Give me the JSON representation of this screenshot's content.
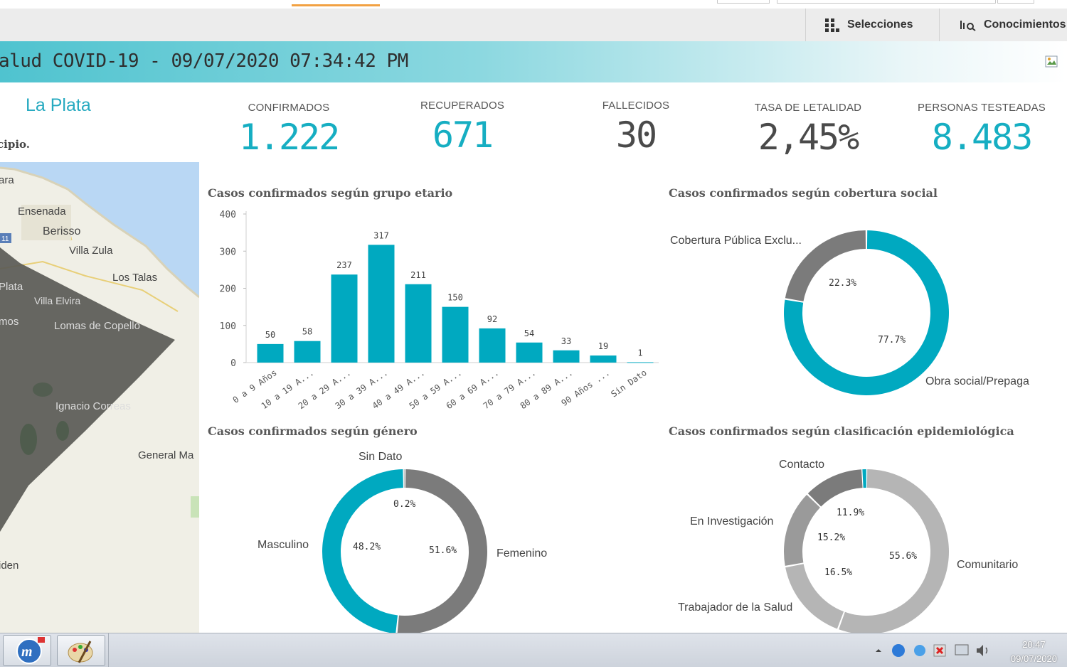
{
  "toolbar": {
    "selections_label": "Selecciones",
    "insights_label": "Conocimientos"
  },
  "banner": {
    "title": "alud COVID-19 - 09/07/2020 07:34:42 PM"
  },
  "left_panel": {
    "municipality": "La Plata",
    "subtitle": "cipio.",
    "map_labels": [
      "ara",
      "Ensenada",
      "Berisso",
      "Villa Zula",
      "Los Talas",
      "Plata",
      "Villa Elvira",
      "mos",
      "Lomas de Copello",
      "Ignacio Correas",
      "General Ma",
      "iden"
    ],
    "map_badge": "11"
  },
  "kpis": [
    {
      "label": "CONFIRMADOS",
      "value": "1.222",
      "color": "#16aec2"
    },
    {
      "label": "RECUPERADOS",
      "value": "671",
      "color": "#16aec2"
    },
    {
      "label": "FALLECIDOS",
      "value": "30",
      "color": "#4a4a4a"
    },
    {
      "label": "TASA DE LETALIDAD",
      "value": "2,45%",
      "color": "#4a4a4a"
    },
    {
      "label": "PERSONAS TESTEADAS",
      "value": "8.483",
      "color": "#16aec2"
    }
  ],
  "colors": {
    "teal": "#00a9c0",
    "dark_gray": "#7b7b7b",
    "mid_gray": "#9a9a9a",
    "light_gray": "#b5b5b5"
  },
  "chart_data": [
    {
      "type": "bar",
      "title": "Casos confirmados según grupo etario",
      "categories": [
        "0 a 9 Años",
        "10 a 19 A...",
        "20 a 29 A...",
        "30 a 39 A...",
        "40 a 49 A...",
        "50 a 59 A...",
        "60 a 69 A...",
        "70 a 79 A...",
        "80 a 89 A...",
        "90 Años ...",
        "Sin Dato"
      ],
      "values": [
        50,
        58,
        237,
        317,
        211,
        150,
        92,
        54,
        33,
        19,
        1
      ],
      "ylim": [
        0,
        400
      ],
      "yticks": [
        0,
        100,
        200,
        300,
        400
      ]
    },
    {
      "type": "pie",
      "title": "Casos confirmados según cobertura social",
      "slices": [
        {
          "label": "Obra social/Prepaga",
          "value": 77.7,
          "pct": "77.7%",
          "color": "#00a9c0"
        },
        {
          "label": "Cobertura Pública Exclu...",
          "value": 22.3,
          "pct": "22.3%",
          "color": "#7b7b7b"
        }
      ]
    },
    {
      "type": "pie",
      "title": "Casos confirmados según género",
      "slices": [
        {
          "label": "Femenino",
          "value": 51.6,
          "pct": "51.6%",
          "color": "#7b7b7b"
        },
        {
          "label": "Masculino",
          "value": 48.2,
          "pct": "48.2%",
          "color": "#00a9c0"
        },
        {
          "label": "Sin Dato",
          "value": 0.2,
          "pct": "0.2%",
          "color": "#b5b5b5"
        }
      ]
    },
    {
      "type": "pie",
      "title": "Casos confirmados según clasificación epidemiológica",
      "slices": [
        {
          "label": "Comunitario",
          "value": 55.6,
          "pct": "55.6%",
          "color": "#b5b5b5"
        },
        {
          "label": "Trabajador de la Salud",
          "value": 16.5,
          "pct": "16.5%",
          "color": "#b5b5b5"
        },
        {
          "label": "En Investigación",
          "value": 15.2,
          "pct": "15.2%",
          "color": "#9a9a9a"
        },
        {
          "label": "Contacto",
          "value": 11.9,
          "pct": "11.9%",
          "color": "#7b7b7b"
        },
        {
          "label": "",
          "value": 0.8,
          "pct": "",
          "color": "#00a9c0"
        }
      ]
    }
  ],
  "taskbar": {
    "time": "20:47",
    "date": "09/07/2020"
  }
}
